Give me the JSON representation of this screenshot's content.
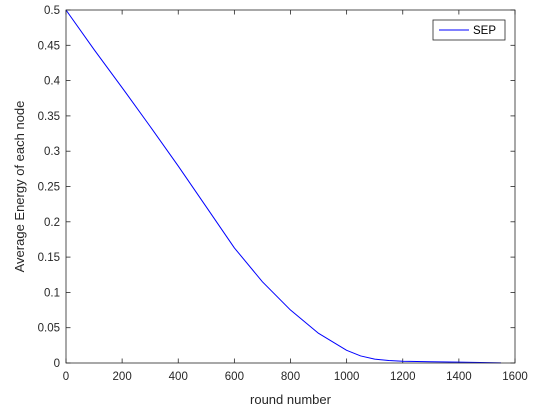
{
  "chart_data": {
    "type": "line",
    "title": "",
    "xlabel": "round number",
    "ylabel": "Average Energy of each node",
    "xlim": [
      0,
      1600
    ],
    "ylim": [
      0,
      0.5
    ],
    "x_ticks": [
      0,
      200,
      400,
      600,
      800,
      1000,
      1200,
      1400,
      1600
    ],
    "y_ticks": [
      0,
      0.05,
      0.1,
      0.15,
      0.2,
      0.25,
      0.3,
      0.35,
      0.4,
      0.45,
      0.5
    ],
    "x_tick_labels": [
      "0",
      "200",
      "400",
      "600",
      "800",
      "1000",
      "1200",
      "1400",
      "1600"
    ],
    "y_tick_labels": [
      "0",
      "0.05",
      "0.1",
      "0.15",
      "0.2",
      "0.25",
      "0.3",
      "0.35",
      "0.4",
      "0.45",
      "0.5"
    ],
    "grid": false,
    "box": true,
    "legend": {
      "placement": "top-right",
      "entries": [
        "SEP"
      ]
    },
    "series": [
      {
        "name": "SEP",
        "color": "#0000ff",
        "x": [
          0,
          100,
          200,
          300,
          400,
          500,
          600,
          700,
          800,
          900,
          1000,
          1050,
          1100,
          1150,
          1200,
          1300,
          1400,
          1500,
          1550
        ],
        "y": [
          0.5,
          0.444,
          0.39,
          0.335,
          0.279,
          0.221,
          0.163,
          0.115,
          0.075,
          0.042,
          0.018,
          0.01,
          0.0055,
          0.0035,
          0.0025,
          0.0018,
          0.0012,
          0.0005,
          0.0002
        ]
      }
    ]
  }
}
